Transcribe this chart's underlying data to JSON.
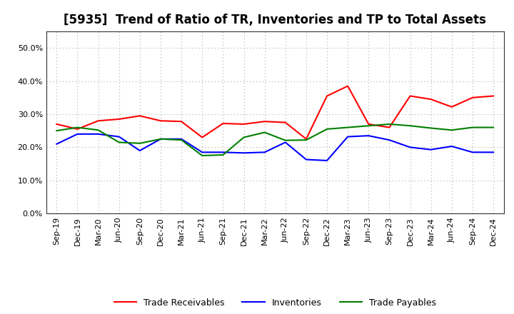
{
  "title": "[5935]  Trend of Ratio of TR, Inventories and TP to Total Assets",
  "labels": [
    "Sep-19",
    "Dec-19",
    "Mar-20",
    "Jun-20",
    "Sep-20",
    "Dec-20",
    "Mar-21",
    "Jun-21",
    "Sep-21",
    "Dec-21",
    "Mar-22",
    "Jun-22",
    "Sep-22",
    "Dec-22",
    "Mar-23",
    "Jun-23",
    "Sep-23",
    "Dec-23",
    "Mar-24",
    "Jun-24",
    "Sep-24",
    "Dec-24"
  ],
  "trade_receivables": [
    0.27,
    0.255,
    0.28,
    0.285,
    0.295,
    0.28,
    0.278,
    0.23,
    0.272,
    0.27,
    0.278,
    0.275,
    0.225,
    0.355,
    0.385,
    0.27,
    0.26,
    0.355,
    0.345,
    0.322,
    0.35,
    0.355
  ],
  "inventories": [
    0.21,
    0.24,
    0.24,
    0.232,
    0.19,
    0.225,
    0.225,
    0.185,
    0.185,
    0.183,
    0.185,
    0.215,
    0.163,
    0.16,
    0.232,
    0.235,
    0.222,
    0.2,
    0.193,
    0.203,
    0.185,
    0.185
  ],
  "trade_payables": [
    0.25,
    0.26,
    0.252,
    0.215,
    0.212,
    0.225,
    0.222,
    0.175,
    0.177,
    0.23,
    0.245,
    0.221,
    0.222,
    0.255,
    0.26,
    0.265,
    0.27,
    0.265,
    0.258,
    0.252,
    0.26,
    0.26
  ],
  "tr_color": "#ff0000",
  "inv_color": "#0000ff",
  "tp_color": "#008000",
  "ylim": [
    0.0,
    0.55
  ],
  "yticks": [
    0.0,
    0.1,
    0.2,
    0.3,
    0.4,
    0.5
  ],
  "background_color": "#ffffff",
  "plot_bg_color": "#ffffff",
  "grid_color": "#aaaaaa",
  "title_fontsize": 12,
  "tick_fontsize": 8,
  "legend_fontsize": 9
}
